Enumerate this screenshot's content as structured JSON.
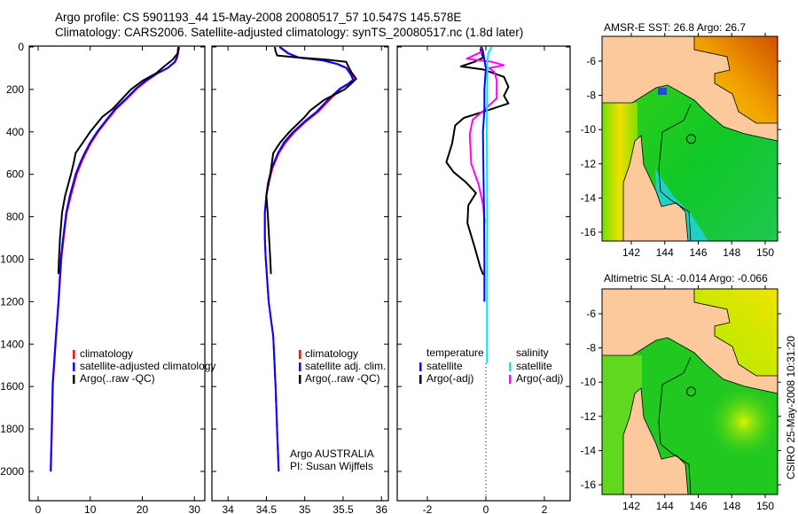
{
  "title": {
    "line1": "Argo profile: CS 5901193_44 15-May-2008 20080517_57 10.547S 145.578E",
    "line2": "Climatology: CARS2006. Satellite-adjusted climatology: synTS_20080517.nc (1.8d later)"
  },
  "depth_axis": {
    "ticks": [
      0,
      200,
      400,
      600,
      800,
      1000,
      1200,
      1400,
      1600,
      1800,
      2000
    ],
    "ylim": [
      0,
      2138
    ],
    "reversed": true
  },
  "chart_data": [
    {
      "type": "line",
      "xlabel": "temperature",
      "ylabel": "depth",
      "xlim": [
        -1.7,
        32
      ],
      "xticks": [
        0,
        10,
        20,
        30
      ],
      "legend": [
        "climatology",
        "satellite-adjusted climatology",
        "Argo(..raw -QC)"
      ],
      "series": [
        {
          "name": "climatology",
          "color": "#ff0000",
          "depth": [
            0,
            50,
            71,
            100,
            125,
            160,
            196,
            250,
            292,
            350,
            397,
            450,
            501,
            550,
            600,
            700,
            781,
            900,
            990,
            1200,
            1365,
            1587,
            1800,
            2000
          ],
          "x": [
            27.1,
            26.7,
            26.3,
            24.9,
            22.9,
            20.8,
            19.0,
            16.8,
            15.0,
            13.1,
            11.6,
            10.2,
            9.1,
            8.2,
            7.4,
            6.3,
            5.5,
            4.9,
            4.5,
            3.95,
            3.45,
            2.85,
            2.65,
            2.45
          ]
        },
        {
          "name": "satellite-adjusted climatology",
          "color": "#0000ff",
          "depth": [
            0,
            50,
            71,
            100,
            125,
            160,
            196,
            250,
            292,
            350,
            397,
            450,
            501,
            550,
            600,
            700,
            781,
            900,
            990,
            1200,
            1365,
            1587,
            1800,
            2000
          ],
          "x": [
            27.0,
            26.6,
            26.2,
            24.8,
            22.8,
            20.6,
            18.8,
            16.6,
            14.8,
            12.9,
            11.4,
            10.0,
            8.9,
            8.0,
            7.2,
            6.1,
            5.4,
            4.8,
            4.4,
            3.9,
            3.4,
            2.8,
            2.6,
            2.4
          ]
        },
        {
          "name": "Argo(..raw -QC)",
          "color": "#000000",
          "depth": [
            0,
            30,
            60,
            100,
            125,
            160,
            200,
            250,
            292,
            330,
            400,
            450,
            500,
            550,
            600,
            700,
            780,
            900,
            1000,
            1070
          ],
          "x": [
            26.9,
            26.8,
            25.8,
            23.8,
            22.6,
            20.0,
            17.8,
            15.9,
            14.3,
            12.3,
            10.0,
            8.6,
            7.2,
            6.8,
            6.3,
            5.2,
            4.6,
            4.2,
            4.0,
            3.9
          ]
        }
      ]
    },
    {
      "type": "line",
      "xlabel": "salinity",
      "ylabel": "depth",
      "xlim": [
        33.79,
        36.09
      ],
      "xticks": [
        34,
        34.5,
        35,
        35.5,
        36
      ],
      "legend": [
        "climatology",
        "satellite adj. clim.",
        "Argo(..raw -QC)"
      ],
      "annotation": [
        "Argo AUSTRALIA",
        "PI: Susan Wijffels"
      ],
      "series": [
        {
          "name": "climatology",
          "color": "#ff0000",
          "depth": [
            0,
            30,
            50,
            63,
            80,
            99,
            130,
            154,
            175,
            196,
            250,
            307,
            350,
            404,
            450,
            501,
            570,
            642,
            700,
            781,
            900,
            990,
            1200,
            1365,
            1600,
            1800,
            2000
          ],
          "x": [
            34.68,
            34.79,
            34.93,
            35.24,
            35.43,
            35.55,
            35.61,
            35.64,
            35.57,
            35.47,
            35.32,
            35.17,
            35.02,
            34.86,
            34.75,
            34.66,
            34.58,
            34.53,
            34.5,
            34.48,
            34.48,
            34.49,
            34.53,
            34.59,
            34.62,
            34.64,
            34.66
          ]
        },
        {
          "name": "satellite adj. clim.",
          "color": "#0000ff",
          "depth": [
            0,
            30,
            50,
            63,
            80,
            99,
            130,
            154,
            175,
            196,
            250,
            307,
            350,
            404,
            450,
            501,
            570,
            642,
            700,
            781,
            900,
            990,
            1200,
            1365,
            1600,
            1800,
            2000
          ],
          "x": [
            34.67,
            34.78,
            34.92,
            35.23,
            35.42,
            35.54,
            35.6,
            35.63,
            35.56,
            35.46,
            35.3,
            35.15,
            35.0,
            34.84,
            34.73,
            34.65,
            34.57,
            34.52,
            34.5,
            34.48,
            34.48,
            34.49,
            34.53,
            34.59,
            34.62,
            34.64,
            34.66
          ]
        },
        {
          "name": "Argo(..raw -QC)",
          "color": "#000000",
          "depth": [
            0,
            20,
            40,
            48,
            60,
            70,
            100,
            120,
            150,
            175,
            200,
            250,
            300,
            330,
            400,
            450,
            500,
            600,
            700,
            800,
            1000,
            1070
          ],
          "x": [
            34.61,
            34.62,
            34.64,
            34.86,
            35.3,
            35.54,
            35.58,
            35.61,
            35.67,
            35.6,
            35.52,
            35.25,
            35.07,
            35.0,
            34.8,
            34.68,
            34.59,
            34.55,
            34.5,
            34.52,
            34.55,
            34.56
          ]
        }
      ]
    },
    {
      "type": "line",
      "xlabel": "difference from climatology",
      "ylabel": "depth",
      "xlim": [
        -3.03,
        2.88
      ],
      "xticks": [
        -2,
        0,
        2
      ],
      "legend_headers": [
        "temperature",
        "salinity"
      ],
      "legend": [
        "satellite",
        "Argo(-adj)",
        "satellite",
        "Argo(-adj)"
      ],
      "zero_reference": {
        "from_depth": 1490,
        "to_depth": 2138
      },
      "series": [
        {
          "name": "temperature Argo(-adj)",
          "color": "#000000",
          "depth": [
            8,
            50,
            70,
            92,
            106,
            141,
            188,
            230,
            266,
            301,
            334,
            370,
            454,
            543,
            590,
            635,
            688,
            746,
            830,
            940,
            1038,
            1073
          ],
          "x": [
            -0.19,
            -0.09,
            -0.4,
            -0.85,
            -0.09,
            0.62,
            0.77,
            0.62,
            0.77,
            0.01,
            -0.75,
            -1.05,
            -1.15,
            -1.35,
            -1.1,
            -0.7,
            -0.34,
            -0.6,
            -0.63,
            -0.39,
            -0.19,
            -0.09
          ]
        },
        {
          "name": "salinity Argo(-adj)",
          "color": "#ff00ff",
          "depth": [
            0,
            20,
            55,
            70,
            86,
            100,
            120,
            158,
            242,
            301,
            343,
            412,
            550,
            647,
            746,
            830
          ],
          "x": [
            -0.19,
            -0.1,
            -0.65,
            0.21,
            0.61,
            0.12,
            0.3,
            0.37,
            0.37,
            -0.09,
            -0.45,
            -0.55,
            -0.5,
            -0.25,
            -0.09,
            -0.04
          ]
        },
        {
          "name": "temperature satellite",
          "color": "#0000ff",
          "depth": [
            0,
            20,
            60,
            100,
            200,
            300,
            400,
            600,
            800,
            1000,
            1200
          ],
          "x": [
            -0.15,
            -0.1,
            -0.05,
            0.0,
            -0.05,
            -0.05,
            -0.1,
            -0.08,
            -0.06,
            -0.05,
            -0.05
          ]
        },
        {
          "name": "salinity satellite",
          "color": "#00e5ee",
          "depth": [
            0,
            30,
            80,
            200,
            400,
            800,
            1200,
            1490
          ],
          "x": [
            0.2,
            0.08,
            0.05,
            0.05,
            0.03,
            0.05,
            0.04,
            0.04
          ]
        }
      ]
    }
  ],
  "maps": [
    {
      "title": "AMSR-E SST: 26.8 Argo: 26.7",
      "lat_ticks": [
        -6,
        -8,
        -10,
        -12,
        -14,
        -16
      ],
      "lon_ticks": [
        142,
        144,
        146,
        148,
        150
      ],
      "argo_position": {
        "lon": 145.578,
        "lat": -10.547
      }
    },
    {
      "title": "Altimetric SLA: -0.014 Argo: -0.066",
      "lat_ticks": [
        -6,
        -8,
        -10,
        -12,
        -14,
        -16
      ],
      "lon_ticks": [
        142,
        144,
        146,
        148,
        150
      ],
      "argo_position": {
        "lon": 145.578,
        "lat": -10.547
      }
    }
  ],
  "timestamp": "CSIRO 25-May-2008 10:31:20",
  "colors": {
    "land": "#fbc99b",
    "sea_green": "#1ec81e",
    "sst_warm": "#f5a400",
    "shelf_cyan": "#20d0c0",
    "gulf_yellow": "#b8f000"
  }
}
